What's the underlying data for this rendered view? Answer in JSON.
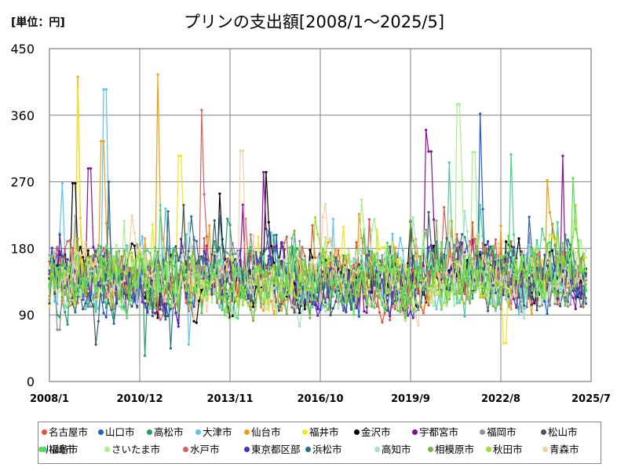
{
  "chart_data": {
    "type": "line",
    "title": "プリンの支出額[2008/1～2025/5]",
    "unit_label": "[単位：円]",
    "y_ticks": [
      "0",
      "90",
      "180",
      "270",
      "360",
      "450"
    ],
    "x_ticks": [
      "2008/1",
      "2010/12",
      "2013/11",
      "2016/10",
      "2019/9",
      "2022/8",
      "2025/7"
    ],
    "ylim": [
      0,
      450
    ],
    "xlim": [
      "2008/1",
      "2025/7"
    ],
    "grid": true,
    "legend_position": "bottom",
    "series": [
      {
        "name": "名古屋市",
        "color": "#e8503a",
        "seed": 1,
        "peaks": []
      },
      {
        "name": "山口市",
        "color": "#1f5fd6",
        "seed": 2,
        "peaks": [
          [
            2021.9,
            362
          ]
        ]
      },
      {
        "name": "高松市",
        "color": "#21a05e",
        "seed": 3,
        "peaks": [
          [
            2011.1,
            35
          ]
        ]
      },
      {
        "name": "大津市",
        "color": "#5bc3f0",
        "seed": 4,
        "peaks": [
          [
            2009.8,
            395
          ],
          [
            2008.4,
            268
          ],
          [
            2012.5,
            50
          ]
        ]
      },
      {
        "name": "仙台市",
        "color": "#f39c12",
        "seed": 5,
        "peaks": [
          [
            2008.9,
            412
          ],
          [
            2011.5,
            415
          ],
          [
            2009.7,
            325
          ],
          [
            2024.1,
            272
          ]
        ]
      },
      {
        "name": "福井市",
        "color": "#f5e51a",
        "seed": 6,
        "peaks": [
          [
            2008.9,
            398
          ],
          [
            2012.2,
            305
          ],
          [
            2022.7,
            52
          ]
        ]
      },
      {
        "name": "金沢市",
        "color": "#000000",
        "seed": 7,
        "peaks": [
          [
            2015.0,
            283
          ],
          [
            2013.5,
            254
          ],
          [
            2008.8,
            268
          ]
        ]
      },
      {
        "name": "宇都宮市",
        "color": "#8e0c9a",
        "seed": 8,
        "peaks": [
          [
            2020.2,
            340
          ],
          [
            2020.3,
            311
          ],
          [
            2014.9,
            283
          ],
          [
            2024.6,
            305
          ],
          [
            2009.3,
            288
          ]
        ]
      },
      {
        "name": "福岡市",
        "color": "#909090",
        "seed": 9,
        "peaks": [
          [
            2008.3,
            70
          ]
        ]
      },
      {
        "name": "松山市",
        "color": "#3c5a66",
        "seed": 10,
        "peaks": [
          [
            2009.9,
            270
          ],
          [
            2009.5,
            50
          ]
        ]
      },
      {
        "name": "福島市",
        "color": "#4cd18a",
        "seed": 11,
        "peaks": [
          [
            2020.9,
            296
          ],
          [
            2022.9,
            307
          ]
        ]
      },
      {
        "name": "さいたま市",
        "color": "#a8f08a",
        "seed": 12,
        "peaks": [
          [
            2021.2,
            375
          ],
          [
            2021.7,
            310
          ]
        ]
      },
      {
        "name": "水戸市",
        "color": "#d9615b",
        "seed": 13,
        "peaks": [
          [
            2012.9,
            367
          ]
        ]
      },
      {
        "name": "東京都区部",
        "color": "#4b2fc6",
        "seed": 14,
        "peaks": []
      },
      {
        "name": "浜松市",
        "color": "#2a6f88",
        "seed": 15,
        "peaks": [
          [
            2011.9,
            45
          ]
        ]
      },
      {
        "name": "高知市",
        "color": "#a8dcd0",
        "seed": 16,
        "peaks": []
      },
      {
        "name": "相模原市",
        "color": "#7fb548",
        "seed": 17,
        "peaks": []
      },
      {
        "name": "秋田市",
        "color": "#9be02a",
        "seed": 18,
        "peaks": []
      },
      {
        "name": "青森市",
        "color": "#f4cfa6",
        "seed": 19,
        "peaks": [
          [
            2014.2,
            312
          ]
        ]
      },
      {
        "name": "川崎市",
        "color": "#50e050",
        "seed": 20,
        "peaks": [
          [
            2024.9,
            275
          ]
        ]
      }
    ]
  }
}
